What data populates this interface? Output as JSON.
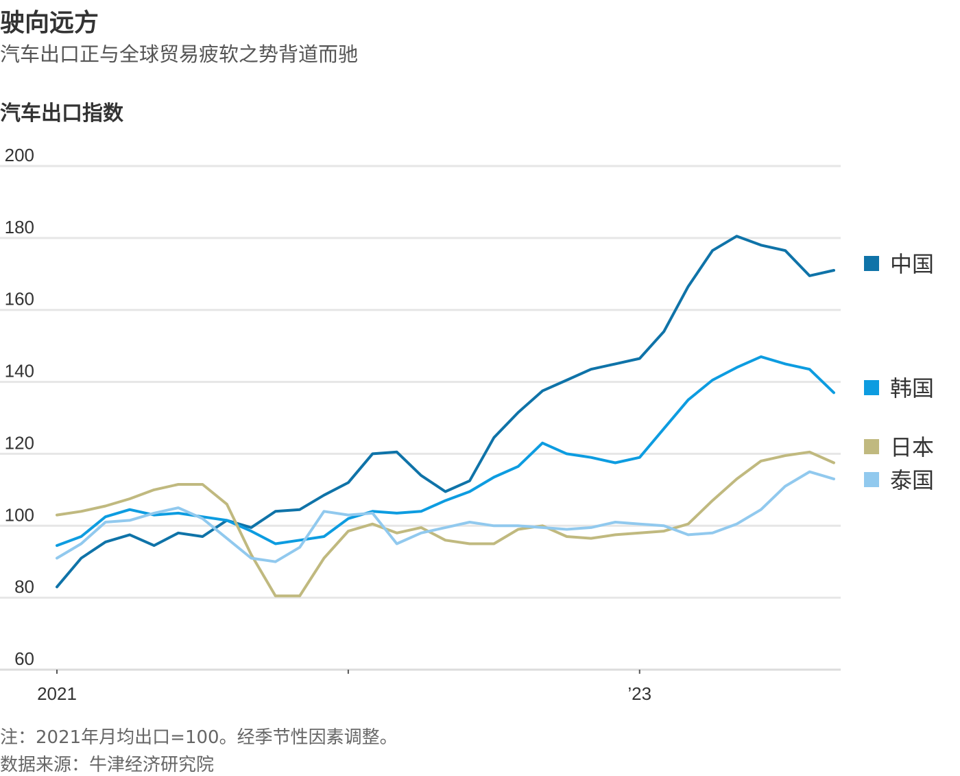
{
  "title": "驶向远方",
  "subtitle": "汽车出口正与全球贸易疲软之势背道而驰",
  "chart_heading": "汽车出口指数",
  "footnote": "注：2021年月均出口=100。经季节性因素调整。",
  "source": "数据来源：牛津经济研究院",
  "chart_data": {
    "type": "line",
    "ylim": [
      60,
      200
    ],
    "yticks": [
      60,
      80,
      100,
      120,
      140,
      160,
      180,
      200
    ],
    "x_unit": "month",
    "x": [
      "2021-01",
      "2021-02",
      "2021-03",
      "2021-04",
      "2021-05",
      "2021-06",
      "2021-07",
      "2021-08",
      "2021-09",
      "2021-10",
      "2021-11",
      "2021-12",
      "2022-01",
      "2022-02",
      "2022-03",
      "2022-04",
      "2022-05",
      "2022-06",
      "2022-07",
      "2022-08",
      "2022-09",
      "2022-10",
      "2022-11",
      "2022-12",
      "2023-01",
      "2023-02",
      "2023-03",
      "2023-04",
      "2023-05",
      "2023-06",
      "2023-07",
      "2023-08",
      "2023-09"
    ],
    "xticks": [
      {
        "x": "2021-01",
        "label": "2021"
      },
      {
        "x": "2022-01",
        "label": ""
      },
      {
        "x": "2023-01",
        "label": "’23"
      }
    ],
    "grid": true,
    "legend_position": "right",
    "series": [
      {
        "name": "中国",
        "color": "#0f73a8",
        "values": [
          83,
          91,
          95.5,
          97.5,
          94.5,
          98,
          97,
          101.5,
          99.5,
          104,
          104.5,
          108.5,
          112,
          120,
          120.5,
          114,
          109.5,
          112.5,
          124.5,
          131.5,
          137.5,
          140.5,
          143.5,
          145,
          146.5,
          154,
          166.5,
          176.5,
          180.5,
          178,
          176.5,
          169.5,
          171
        ]
      },
      {
        "name": "韩国",
        "color": "#0d9ce0",
        "values": [
          94.5,
          97,
          102.5,
          104.5,
          103,
          103.5,
          102.5,
          101.5,
          98.5,
          95,
          96,
          97,
          102,
          104,
          103.5,
          104,
          107,
          109.5,
          113.5,
          116.5,
          123,
          120,
          119,
          117.5,
          119,
          127,
          135,
          140.5,
          144,
          147,
          145,
          143.5,
          137
        ]
      },
      {
        "name": "日本",
        "color": "#c0b97f",
        "values": [
          103,
          104,
          105.5,
          107.5,
          110,
          111.5,
          111.5,
          106,
          92,
          80.5,
          80.5,
          91,
          98.5,
          100.5,
          98,
          99.5,
          96,
          95,
          95,
          99,
          100,
          97,
          96.5,
          97.5,
          98,
          98.5,
          100.5,
          107,
          113,
          118,
          119.5,
          120.5,
          117.5
        ]
      },
      {
        "name": "泰国",
        "color": "#91c9ee",
        "values": [
          91,
          95,
          101,
          101.5,
          103.5,
          105,
          102,
          96.5,
          91,
          90,
          94,
          104,
          103,
          103.5,
          95,
          98,
          99.5,
          101,
          100,
          100,
          99.5,
          99,
          99.5,
          101,
          100.5,
          100,
          97.5,
          98,
          100.5,
          104.5,
          111,
          115,
          113
        ]
      }
    ]
  }
}
